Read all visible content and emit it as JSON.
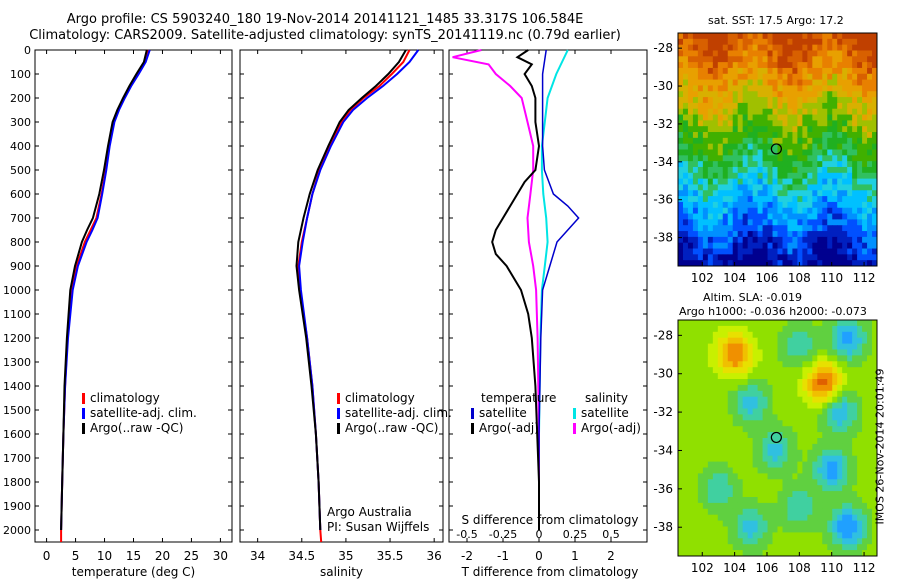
{
  "header": {
    "line1": "Argo profile: CS 5903240_180 19-Nov-2014 20141121_1485 33.317S 106.584E",
    "line2": "Climatology: CARS2009. Satellite-adjusted climatology: synTS_20141119.nc (0.79d earlier)"
  },
  "colors": {
    "climatology": "#ff0000",
    "satellite": "#0000ff",
    "argo": "#000000",
    "temp_satellite": "#0000cc",
    "sal_satellite": "#00e5e5",
    "sal_argo": "#ff00ff",
    "marker": "#000000"
  },
  "sst_map": {
    "title": "sat. SST: 17.5 Argo: 17.2",
    "xticks": [
      "102",
      "104",
      "106",
      "108",
      "110",
      "112"
    ],
    "yticks": [
      "-28",
      "-30",
      "-32",
      "-34",
      "-36",
      "-38"
    ],
    "marker": {
      "lon": 106.58,
      "lat": -33.32
    }
  },
  "sla_map": {
    "title1": "Altim. SLA: -0.019",
    "title2": "Argo h1000: -0.036 h2000: -0.073",
    "xticks": [
      "102",
      "104",
      "106",
      "108",
      "110",
      "112"
    ],
    "yticks": [
      "-28",
      "-30",
      "-32",
      "-34",
      "-36",
      "-38"
    ],
    "marker": {
      "lon": 106.58,
      "lat": -33.32
    }
  },
  "credit": "IMOS 26-Nov-2014 20:01:49",
  "chart_data": [
    {
      "type": "line",
      "panel": "temperature",
      "xlabel": "temperature (deg C)",
      "ylabel": "",
      "xlim": [
        -2,
        32
      ],
      "ylim": [
        2050,
        0
      ],
      "xticks": [
        "0",
        "5",
        "10",
        "15",
        "20",
        "25",
        "30"
      ],
      "yticks": [
        "0",
        "100",
        "200",
        "300",
        "400",
        "500",
        "600",
        "700",
        "800",
        "900",
        "1000",
        "1100",
        "1200",
        "1300",
        "1400",
        "1500",
        "1600",
        "1700",
        "1800",
        "1900",
        "2000"
      ],
      "legend": [
        "climatology",
        "satellite-adj. clim.",
        "Argo(..raw -QC)"
      ],
      "series": [
        {
          "name": "climatology",
          "depth": [
            0,
            50,
            100,
            150,
            200,
            250,
            300,
            400,
            500,
            600,
            700,
            750,
            800,
            900,
            1000,
            1200,
            1400,
            1600,
            1800,
            2000,
            2050
          ],
          "values": [
            17.6,
            17.0,
            15.8,
            14.5,
            13.4,
            12.4,
            11.6,
            10.8,
            10.2,
            9.5,
            8.6,
            7.6,
            6.6,
            5.2,
            4.4,
            3.6,
            3.2,
            2.9,
            2.7,
            2.5,
            2.5
          ]
        },
        {
          "name": "satellite-adj. clim.",
          "depth": [
            0,
            50,
            100,
            150,
            200,
            250,
            300,
            400,
            500,
            600,
            700,
            750,
            800,
            900,
            1000,
            1200,
            1400,
            1600,
            1800,
            2000
          ],
          "values": [
            17.8,
            17.1,
            15.9,
            14.6,
            13.5,
            12.5,
            11.7,
            10.9,
            10.3,
            9.6,
            8.8,
            7.9,
            6.9,
            5.4,
            4.5,
            3.7,
            3.2,
            2.9,
            2.7,
            2.5
          ]
        },
        {
          "name": "Argo(..raw -QC)",
          "depth": [
            0,
            50,
            100,
            150,
            200,
            250,
            300,
            400,
            500,
            600,
            700,
            750,
            800,
            900,
            1000,
            1200,
            1400,
            1600,
            1800,
            2000
          ],
          "values": [
            17.3,
            16.8,
            15.5,
            14.3,
            13.2,
            12.2,
            11.4,
            10.6,
            9.9,
            9.1,
            8.0,
            7.0,
            6.1,
            4.9,
            4.1,
            3.5,
            3.1,
            2.9,
            2.7,
            2.5
          ]
        }
      ]
    },
    {
      "type": "line",
      "panel": "salinity",
      "xlabel": "salinity",
      "ylabel": "",
      "xlim": [
        33.8,
        36.1
      ],
      "ylim": [
        2050,
        0
      ],
      "xticks": [
        "34",
        "34.5",
        "35",
        "35.5",
        "36"
      ],
      "legend": [
        "climatology",
        "satellite-adj. clim.",
        "Argo(..raw -QC)"
      ],
      "annotation": [
        "Argo Australia",
        "PI: Susan Wijffels"
      ],
      "series": [
        {
          "name": "climatology",
          "depth": [
            0,
            50,
            100,
            150,
            200,
            250,
            300,
            400,
            500,
            600,
            700,
            800,
            900,
            1000,
            1200,
            1400,
            1600,
            1800,
            2000,
            2050
          ],
          "values": [
            35.72,
            35.65,
            35.52,
            35.38,
            35.2,
            35.05,
            34.95,
            34.82,
            34.7,
            34.62,
            34.56,
            34.5,
            34.46,
            34.48,
            34.56,
            34.62,
            34.66,
            34.69,
            34.71,
            34.72
          ]
        },
        {
          "name": "satellite-adj. clim.",
          "depth": [
            0,
            50,
            100,
            150,
            200,
            250,
            300,
            400,
            500,
            600,
            700,
            800,
            900,
            1000,
            1200,
            1400,
            1600,
            1800,
            2000
          ],
          "values": [
            35.82,
            35.72,
            35.58,
            35.42,
            35.24,
            35.08,
            34.97,
            34.83,
            34.71,
            34.62,
            34.56,
            34.51,
            34.47,
            34.49,
            34.56,
            34.62,
            34.66,
            34.69,
            34.71
          ]
        },
        {
          "name": "Argo(..raw -QC)",
          "depth": [
            0,
            50,
            100,
            150,
            200,
            250,
            300,
            400,
            500,
            600,
            700,
            800,
            900,
            1000,
            1200,
            1400,
            1600,
            1800,
            2000
          ],
          "values": [
            35.68,
            35.6,
            35.48,
            35.34,
            35.18,
            35.03,
            34.93,
            34.8,
            34.68,
            34.59,
            34.52,
            34.46,
            34.44,
            34.47,
            34.55,
            34.61,
            34.66,
            34.69,
            34.71
          ]
        }
      ]
    },
    {
      "type": "line",
      "panel": "difference",
      "xlabel": "T difference from climatology",
      "xlabel_top": "S difference from climatology",
      "xlim": [
        -2.5,
        3.0
      ],
      "ylim": [
        2050,
        0
      ],
      "xticks": [
        "-2",
        "-1",
        "0",
        "1",
        "2"
      ],
      "sticks": [
        "-0.5",
        "-0.25",
        "0",
        "0.25",
        "0.5"
      ],
      "legend_temperature": [
        "temperature",
        "satellite",
        "Argo(-adj)"
      ],
      "legend_salinity": [
        "salinity",
        "satellite",
        "Argo(-adj)"
      ],
      "series": [
        {
          "name": "T satellite",
          "depth": [
            0,
            100,
            200,
            300,
            400,
            500,
            600,
            650,
            700,
            750,
            800,
            900,
            1000,
            1200,
            1600,
            2000
          ],
          "values": [
            0.2,
            0.1,
            0.1,
            0.1,
            0.1,
            0.15,
            0.4,
            0.8,
            1.1,
            0.8,
            0.5,
            0.3,
            0.1,
            0.05,
            0.0,
            0.0
          ]
        },
        {
          "name": "T Argo(-adj)",
          "depth": [
            0,
            30,
            60,
            100,
            150,
            200,
            300,
            400,
            500,
            550,
            600,
            650,
            700,
            750,
            800,
            850,
            900,
            950,
            1000,
            1100,
            1200,
            1400,
            1600,
            1800,
            2000
          ],
          "values": [
            -0.3,
            -0.6,
            -0.2,
            -0.4,
            -0.2,
            -0.1,
            -0.1,
            0.0,
            -0.1,
            -0.4,
            -0.6,
            -0.8,
            -1.0,
            -1.2,
            -1.3,
            -1.2,
            -0.9,
            -0.7,
            -0.5,
            -0.3,
            -0.2,
            -0.1,
            -0.05,
            0.0,
            0.0
          ]
        },
        {
          "name": "S satellite",
          "depth": [
            0,
            100,
            200,
            300,
            400,
            500,
            600,
            700,
            800,
            900,
            1000,
            1200,
            1600,
            2000
          ],
          "values": [
            0.2,
            0.12,
            0.06,
            0.04,
            0.02,
            0.02,
            0.03,
            0.05,
            0.06,
            0.04,
            0.02,
            0.01,
            0.0,
            0.0
          ]
        },
        {
          "name": "S Argo(-adj)",
          "depth": [
            0,
            30,
            60,
            100,
            150,
            200,
            300,
            400,
            500,
            600,
            700,
            800,
            900,
            1000,
            1200,
            1600,
            2000
          ],
          "values": [
            -0.4,
            -0.6,
            -0.35,
            -0.3,
            -0.2,
            -0.12,
            -0.08,
            -0.04,
            -0.04,
            -0.06,
            -0.08,
            -0.07,
            -0.04,
            -0.02,
            -0.01,
            0.0,
            0.0
          ]
        }
      ]
    }
  ]
}
